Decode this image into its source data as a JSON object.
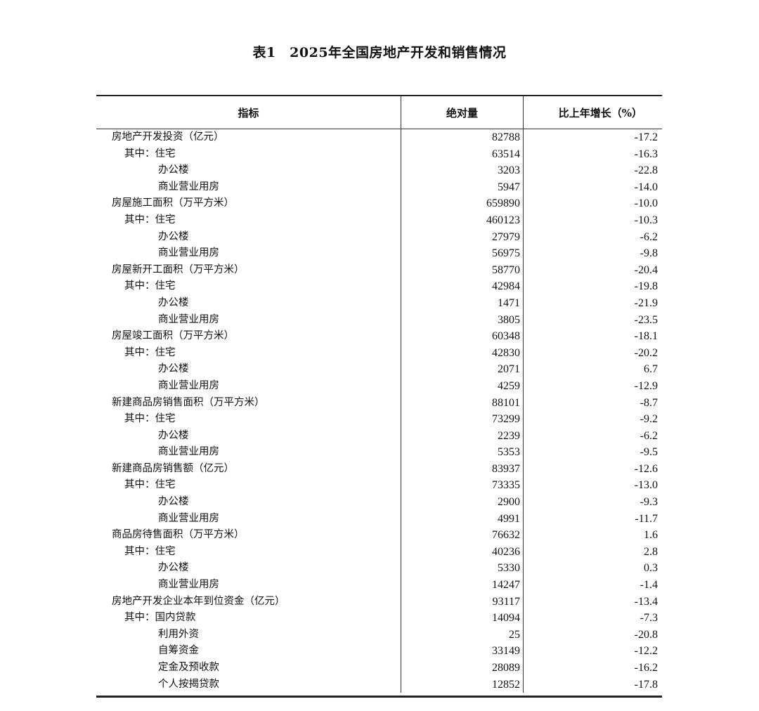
{
  "title": "表1　2025年全国房地产开发和销售情况",
  "headers": [
    "指标",
    "绝对量",
    "比上年增长（%）"
  ],
  "rows": [
    {
      "label": "房地产开发投资（亿元）",
      "level": 0,
      "value": "82788",
      "growth": "-17.2"
    },
    {
      "label": "其中：住宅",
      "level": 1,
      "value": "63514",
      "growth": "-16.3"
    },
    {
      "label": "办公楼",
      "level": 2,
      "value": "3203",
      "growth": "-22.8"
    },
    {
      "label": "商业营业用房",
      "level": 2,
      "value": "5947",
      "growth": "-14.0"
    },
    {
      "label": "房屋施工面积（万平方米）",
      "level": 0,
      "value": "659890",
      "growth": "-10.0"
    },
    {
      "label": "其中：住宅",
      "level": 1,
      "value": "460123",
      "growth": "-10.3"
    },
    {
      "label": "办公楼",
      "level": 2,
      "value": "27979",
      "growth": "-6.2"
    },
    {
      "label": "商业营业用房",
      "level": 2,
      "value": "56975",
      "growth": "-9.8"
    },
    {
      "label": "房屋新开工面积（万平方米）",
      "level": 0,
      "value": "58770",
      "growth": "-20.4"
    },
    {
      "label": "其中：住宅",
      "level": 1,
      "value": "42984",
      "growth": "-19.8"
    },
    {
      "label": "办公楼",
      "level": 2,
      "value": "1471",
      "growth": "-21.9"
    },
    {
      "label": "商业营业用房",
      "level": 2,
      "value": "3805",
      "growth": "-23.5"
    },
    {
      "label": "房屋竣工面积（万平方米）",
      "level": 0,
      "value": "60348",
      "growth": "-18.1"
    },
    {
      "label": "其中：住宅",
      "level": 1,
      "value": "42830",
      "growth": "-20.2"
    },
    {
      "label": "办公楼",
      "level": 2,
      "value": "2071",
      "growth": "6.7"
    },
    {
      "label": "商业营业用房",
      "level": 2,
      "value": "4259",
      "growth": "-12.9"
    },
    {
      "label": "新建商品房销售面积（万平方米）",
      "level": 0,
      "value": "88101",
      "growth": "-8.7"
    },
    {
      "label": "其中：住宅",
      "level": 1,
      "value": "73299",
      "growth": "-9.2"
    },
    {
      "label": "办公楼",
      "level": 2,
      "value": "2239",
      "growth": "-6.2"
    },
    {
      "label": "商业营业用房",
      "level": 2,
      "value": "5353",
      "growth": "-9.5"
    },
    {
      "label": "新建商品房销售额（亿元）",
      "level": 0,
      "value": "83937",
      "growth": "-12.6"
    },
    {
      "label": "其中：住宅",
      "level": 1,
      "value": "73335",
      "growth": "-13.0"
    },
    {
      "label": "办公楼",
      "level": 2,
      "value": "2900",
      "growth": "-9.3"
    },
    {
      "label": "商业营业用房",
      "level": 2,
      "value": "4991",
      "growth": "-11.7"
    },
    {
      "label": "商品房待售面积（万平方米）",
      "level": 0,
      "value": "76632",
      "growth": "1.6"
    },
    {
      "label": "其中：住宅",
      "level": 1,
      "value": "40236",
      "growth": "2.8"
    },
    {
      "label": "办公楼",
      "level": 2,
      "value": "5330",
      "growth": "0.3"
    },
    {
      "label": "商业营业用房",
      "level": 2,
      "value": "14247",
      "growth": "-1.4"
    },
    {
      "label": "房地产开发企业本年到位资金（亿元）",
      "level": 0,
      "value": "93117",
      "growth": "-13.4"
    },
    {
      "label": "其中：国内贷款",
      "level": 1,
      "value": "14094",
      "growth": "-7.3"
    },
    {
      "label": "利用外资",
      "level": 2,
      "value": "25",
      "growth": "-20.8"
    },
    {
      "label": "自筹资金",
      "level": 2,
      "value": "33149",
      "growth": "-12.2"
    },
    {
      "label": "定金及预收款",
      "level": 2,
      "value": "28089",
      "growth": "-16.2"
    },
    {
      "label": "个人按揭贷款",
      "level": 2,
      "value": "12852",
      "growth": "-17.8"
    }
  ]
}
